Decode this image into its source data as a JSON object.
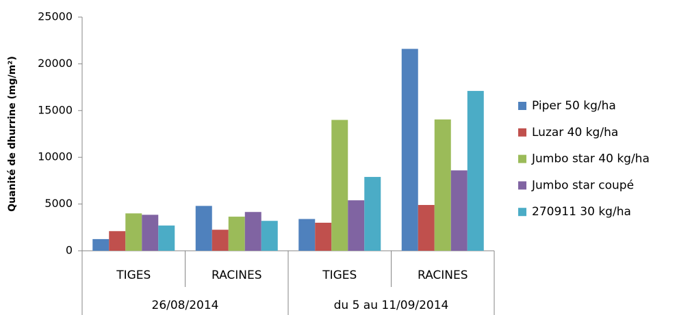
{
  "chart_data": {
    "type": "bar",
    "y_label": "Quanité de dhurrine (mg/m²)",
    "categories": [
      "TIGES",
      "RACINES",
      "TIGES",
      "RACINES"
    ],
    "category_groups": [
      "26/08/2014",
      "du 5 au 11/09/2014"
    ],
    "series": [
      {
        "name": "Piper 50 kg/ha",
        "color": "#4f81bd",
        "values": [
          1250,
          4800,
          3400,
          21600
        ]
      },
      {
        "name": "Luzar 40 kg/ha",
        "color": "#c0504d",
        "values": [
          2100,
          2250,
          3000,
          4900
        ]
      },
      {
        "name": "Jumbo star 40 kg/ha",
        "color": "#9bbb59",
        "values": [
          4000,
          3650,
          14000,
          14050
        ]
      },
      {
        "name": "Jumbo star coupé",
        "color": "#8064a2",
        "values": [
          3850,
          4150,
          5400,
          8600
        ]
      },
      {
        "name": "270911 30 kg/ha",
        "color": "#4bacc6",
        "values": [
          2700,
          3200,
          7900,
          17100
        ]
      }
    ],
    "ylim": [
      0,
      25000
    ],
    "yticks": [
      0,
      5000,
      10000,
      15000,
      20000,
      25000
    ],
    "grid": false,
    "legend": "right"
  }
}
